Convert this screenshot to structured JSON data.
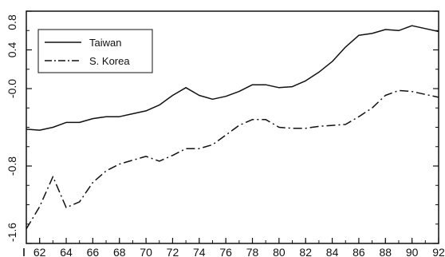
{
  "chart_data": {
    "type": "line",
    "title": "",
    "xlabel": "",
    "ylabel": "",
    "x": [
      61,
      62,
      63,
      64,
      65,
      66,
      67,
      68,
      69,
      70,
      71,
      72,
      73,
      74,
      75,
      76,
      77,
      78,
      79,
      80,
      81,
      82,
      83,
      84,
      85,
      86,
      87,
      88,
      89,
      90,
      91,
      92
    ],
    "xlim": [
      61,
      92
    ],
    "ylim": [
      -1.6,
      0.8
    ],
    "x_ticks": [
      "62",
      "64",
      "66",
      "68",
      "70",
      "72",
      "74",
      "76",
      "78",
      "80",
      "82",
      "84",
      "86",
      "88",
      "90",
      "92"
    ],
    "x_tick_values": [
      62,
      64,
      66,
      68,
      70,
      72,
      74,
      76,
      78,
      80,
      82,
      84,
      86,
      88,
      90,
      92
    ],
    "y_ticks": [
      "0.8",
      "0.4",
      "-0.0",
      "-0.8",
      "-1.6"
    ],
    "y_tick_values": [
      0.8,
      0.4,
      0.0,
      -0.8,
      -1.6
    ],
    "grid": false,
    "legend_position": "top-left",
    "series": [
      {
        "name": "Taiwan",
        "style": "solid",
        "color": "#111111",
        "values": [
          -0.42,
          -0.43,
          -0.4,
          -0.35,
          -0.35,
          -0.31,
          -0.29,
          -0.29,
          -0.26,
          -0.23,
          -0.17,
          -0.07,
          0.01,
          -0.07,
          -0.11,
          -0.08,
          -0.03,
          0.04,
          0.04,
          0.01,
          0.02,
          0.08,
          0.17,
          0.28,
          0.43,
          0.55,
          0.57,
          0.61,
          0.6,
          0.65,
          0.62,
          0.59
        ]
      },
      {
        "name": "S. Korea",
        "style": "dashdot",
        "color": "#111111",
        "values": [
          -1.45,
          -1.22,
          -0.91,
          -1.23,
          -1.17,
          -0.97,
          -0.85,
          -0.78,
          -0.74,
          -0.7,
          -0.75,
          -0.69,
          -0.62,
          -0.62,
          -0.58,
          -0.48,
          -0.38,
          -0.32,
          -0.32,
          -0.4,
          -0.41,
          -0.41,
          -0.39,
          -0.38,
          -0.37,
          -0.29,
          -0.2,
          -0.07,
          -0.02,
          -0.03,
          -0.06,
          -0.09
        ]
      }
    ]
  }
}
